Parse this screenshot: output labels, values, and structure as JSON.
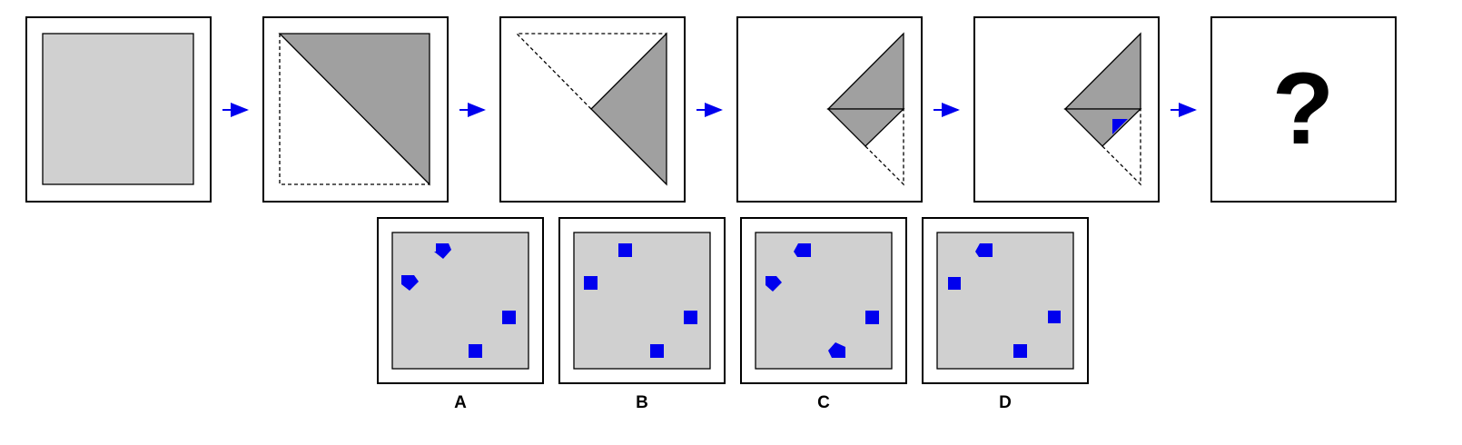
{
  "question_mark": "?",
  "options": [
    {
      "label": "A"
    },
    {
      "label": "B"
    },
    {
      "label": "C"
    },
    {
      "label": "D"
    }
  ],
  "colors": {
    "paper": "#d0d0d0",
    "folded": "#a0a0a0",
    "hole": "#0000ee",
    "arrow": "#0000ee"
  }
}
